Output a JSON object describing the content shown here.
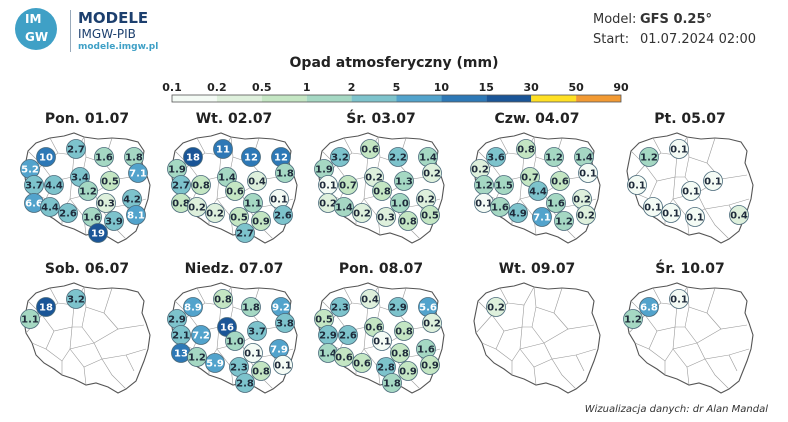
{
  "logo": {
    "letters_top": "IM",
    "letters_bottom": "GW"
  },
  "brand": {
    "title": "MODELE",
    "subtitle": "IMGW-PIB",
    "url": "modele.imgw.pl"
  },
  "meta": {
    "model_label": "Model:",
    "model_value": "GFS 0.25°",
    "start_label": "Start:",
    "start_value": "01.07.2024 02:00"
  },
  "legend": {
    "title": "Opad atmosferyczny (mm)",
    "ticks": [
      "0.1",
      "0.2",
      "0.5",
      "1",
      "2",
      "5",
      "10",
      "15",
      "30",
      "50",
      "90"
    ],
    "colors": [
      "#f4fbf5",
      "#def0dc",
      "#c4e6c3",
      "#a5d8c3",
      "#7dc3cc",
      "#52a3cc",
      "#2d78b6",
      "#1a5597",
      "#ffe024",
      "#f29a33",
      "#d7332c"
    ]
  },
  "days": [
    {
      "title": "Pon. 01.07",
      "labels": [
        "10",
        "2.7",
        "1.6",
        "1.8",
        "5.2",
        "7.1",
        "3.7",
        "4.4",
        "3.4",
        "0.5",
        "6.6",
        "1.2",
        "4.2",
        "4.4",
        "0.3",
        "2.6",
        "1.6",
        "3.9",
        "8.1",
        "19"
      ]
    },
    {
      "title": "Wt. 02.07",
      "labels": [
        "18",
        "11",
        "12",
        "12",
        "1.9",
        "1.8",
        "2.7",
        "0.8",
        "1.4",
        "0.4",
        "0.8",
        "0.6",
        "0.1",
        "0.2",
        "1.1",
        "0.2",
        "0.5",
        "0.9",
        "2.6",
        "2.7"
      ]
    },
    {
      "title": "Śr. 03.07",
      "labels": [
        "3.2",
        "0.6",
        "2.2",
        "1.4",
        "1.9",
        "0.2",
        "0.1",
        "0.7",
        "0.2",
        "1.3",
        "0.2",
        "0.8",
        "0.2",
        "1.4",
        "1.0",
        "0.2",
        "0.3",
        "0.8",
        "0.5"
      ]
    },
    {
      "title": "Czw. 04.07",
      "labels": [
        "3.6",
        "0.8",
        "1.2",
        "1.4",
        "0.2",
        "0.1",
        "1.2",
        "1.5",
        "0.7",
        "0.6",
        "0.1",
        "4.4",
        "0.2",
        "1.6",
        "1.6",
        "4.9",
        "7.1",
        "1.2",
        "0.2"
      ]
    },
    {
      "title": "Pt. 05.07",
      "labels": [
        "1.2",
        "0.1",
        "0.1",
        "0.1",
        "0.1",
        "0.1",
        "0.1",
        "0.4",
        "0.1"
      ]
    },
    {
      "title": "Sob. 06.07",
      "labels": [
        "18",
        "3.2",
        "1.1"
      ]
    },
    {
      "title": "Niedz. 07.07",
      "labels": [
        "8.9",
        "0.8",
        "1.8",
        "9.2",
        "2.9",
        "3.8",
        "2.1",
        "7.2",
        "16",
        "3.7",
        "13",
        "1.0",
        "7.9",
        "1.2",
        "0.1",
        "5.9",
        "2.3",
        "0.8",
        "0.1",
        "2.8"
      ]
    },
    {
      "title": "Pon. 08.07",
      "labels": [
        "2.3",
        "0.4",
        "2.9",
        "5.6",
        "0.5",
        "0.2",
        "2.9",
        "2.6",
        "0.6",
        "0.8",
        "1.4",
        "0.1",
        "1.6",
        "0.6",
        "0.8",
        "0.6",
        "2.8",
        "0.9",
        "0.9",
        "1.8"
      ]
    },
    {
      "title": "Wt. 09.07",
      "labels": [
        "0.2"
      ]
    },
    {
      "title": "Śr. 10.07",
      "labels": [
        "6.8",
        "0.1",
        "1.2"
      ]
    }
  ],
  "credit": "Wizualizacja danych: dr Alan Mandal"
}
